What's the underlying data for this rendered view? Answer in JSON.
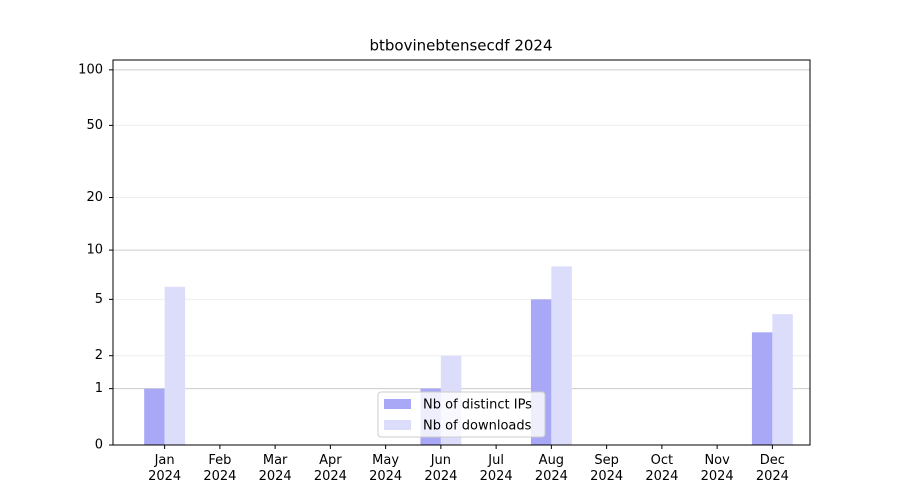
{
  "chart_data": {
    "type": "bar",
    "title": "btbovinebtensecdf 2024",
    "categories": [
      "Jan 2024",
      "Feb 2024",
      "Mar 2024",
      "Apr 2024",
      "May 2024",
      "Jun 2024",
      "Jul 2024",
      "Aug 2024",
      "Sep 2024",
      "Oct 2024",
      "Nov 2024",
      "Dec 2024"
    ],
    "series": [
      {
        "name": "Nb of distinct IPs",
        "color": "#a8a8f6",
        "values": [
          1,
          0,
          0,
          0,
          0,
          1,
          0,
          5,
          0,
          0,
          0,
          3
        ]
      },
      {
        "name": "Nb of downloads",
        "color": "#dcdcfb",
        "values": [
          6,
          0,
          0,
          0,
          0,
          2,
          0,
          8,
          0,
          0,
          0,
          4
        ]
      }
    ],
    "yscale": "symlog",
    "ylim": [
      0,
      113
    ],
    "yticks": [
      0,
      1,
      2,
      5,
      10,
      20,
      50,
      100
    ],
    "grid": true,
    "legend": "lower center"
  }
}
